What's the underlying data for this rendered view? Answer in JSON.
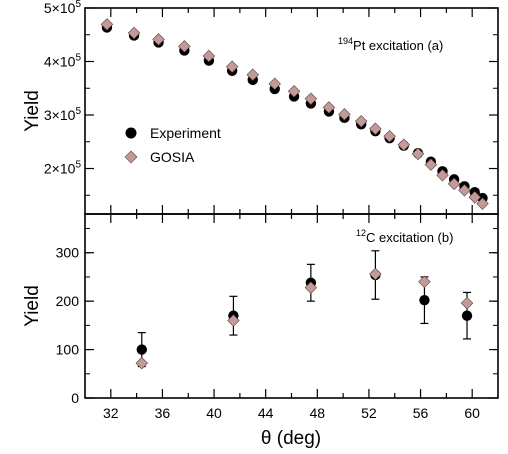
{
  "colors": {
    "experiment": "#000000",
    "gosia": "#c49a98",
    "gosia_edge": "#5a4040"
  },
  "chart_data": [
    {
      "type": "scatter",
      "panel": "a",
      "annotation": {
        "sup": "194",
        "text": "Pt excitation (a)"
      },
      "xlabel": "θ (deg)",
      "ylabel": "Yield",
      "xlim": [
        30,
        62
      ],
      "ylim": [
        115000,
        500000
      ],
      "yticks": [
        {
          "value": 200000,
          "mantissa": "2×10",
          "exp": "5"
        },
        {
          "value": 300000,
          "mantissa": "3×10",
          "exp": "5"
        },
        {
          "value": 400000,
          "mantissa": "4×10",
          "exp": "5"
        },
        {
          "value": 500000,
          "mantissa": "5×10",
          "exp": "5"
        }
      ],
      "legend": {
        "position": "middle-left",
        "entries": [
          "Experiment",
          "GOSIA"
        ]
      },
      "series": [
        {
          "name": "Experiment",
          "marker": "circle",
          "x": [
            31.7,
            33.8,
            35.7,
            37.7,
            39.6,
            41.4,
            43.0,
            44.7,
            46.2,
            47.5,
            48.9,
            50.1,
            51.4,
            52.5,
            53.6,
            54.7,
            55.8,
            56.8,
            57.7,
            58.6,
            59.4,
            60.2,
            60.8
          ],
          "y": [
            465000,
            450000,
            437000,
            422000,
            403000,
            384000,
            367000,
            350000,
            336000,
            323000,
            308000,
            296000,
            284000,
            271000,
            258000,
            244000,
            230000,
            214000,
            196000,
            181000,
            168000,
            157000,
            146000
          ]
        },
        {
          "name": "GOSIA",
          "marker": "diamond",
          "x": [
            31.7,
            33.8,
            35.7,
            37.7,
            39.6,
            41.4,
            43.0,
            44.7,
            46.2,
            47.5,
            48.9,
            50.1,
            51.4,
            52.5,
            53.6,
            54.7,
            55.8,
            56.8,
            57.7,
            58.6,
            59.4,
            60.2,
            60.8
          ],
          "y": [
            468000,
            452000,
            440000,
            427000,
            409000,
            389000,
            374000,
            357000,
            343000,
            329000,
            313000,
            300000,
            287000,
            273000,
            259000,
            243000,
            226000,
            206000,
            186000,
            170000,
            158000,
            145000,
            133000
          ]
        }
      ]
    },
    {
      "type": "scatter",
      "panel": "b",
      "annotation": {
        "sup": "12",
        "text": "C excitation (b)"
      },
      "xlabel": "θ (deg)",
      "ylabel": "Yield",
      "xlim": [
        30,
        62
      ],
      "ylim": [
        0,
        380
      ],
      "yticks": [
        {
          "value": 0,
          "label": "0"
        },
        {
          "value": 100,
          "label": "100"
        },
        {
          "value": 200,
          "label": "200"
        },
        {
          "value": 300,
          "label": "300"
        }
      ],
      "xticks": [
        32,
        36,
        40,
        44,
        48,
        52,
        56,
        60
      ],
      "series": [
        {
          "name": "Experiment",
          "marker": "circle",
          "x": [
            34.4,
            41.5,
            47.5,
            52.5,
            56.3,
            59.6
          ],
          "y": [
            100,
            170,
            238,
            254,
            202,
            170
          ],
          "yerr": [
            35,
            40,
            38,
            50,
            48,
            48
          ]
        },
        {
          "name": "GOSIA",
          "marker": "diamond",
          "x": [
            34.4,
            41.5,
            47.5,
            52.5,
            56.3,
            59.6
          ],
          "y": [
            72,
            160,
            228,
            256,
            240,
            196
          ]
        }
      ]
    }
  ]
}
